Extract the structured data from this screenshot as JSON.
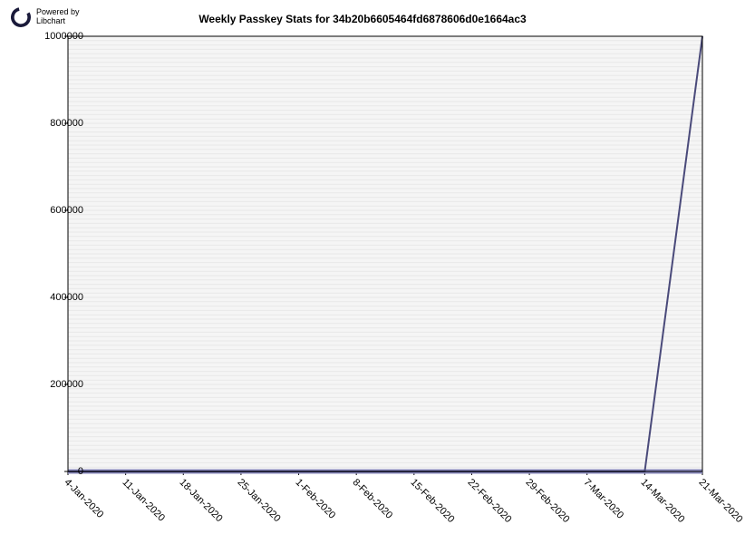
{
  "logo": {
    "powered_by": "Powered by",
    "name": "Libchart"
  },
  "title": "Weekly Passkey Stats for 34b20b6605464fd6878606d0e1664ac3",
  "chart": {
    "type": "line",
    "background_color": "#ffffff",
    "plot_background_color": "#f5f5f5",
    "border_color": "#000000",
    "grid_color": "#e8e8e8",
    "line_color": "#4a4a7a",
    "line_width": 2,
    "baseline_color": "#8888bb",
    "baseline_width": 5,
    "title_fontsize": 12,
    "title_fontweight": "bold",
    "tick_fontsize": 11,
    "x_label_rotation": 45,
    "ylim": [
      0,
      1000000
    ],
    "ytick_step": 200000,
    "y_ticks": [
      {
        "value": 0,
        "label": "0"
      },
      {
        "value": 200000,
        "label": "200000"
      },
      {
        "value": 400000,
        "label": "400000"
      },
      {
        "value": 600000,
        "label": "600000"
      },
      {
        "value": 800000,
        "label": "800000"
      },
      {
        "value": 1000000,
        "label": "1000000"
      }
    ],
    "x_categories": [
      "4-Jan-2020",
      "11-Jan-2020",
      "18-Jan-2020",
      "25-Jan-2020",
      "1-Feb-2020",
      "8-Feb-2020",
      "15-Feb-2020",
      "22-Feb-2020",
      "29-Feb-2020",
      "7-Mar-2020",
      "14-Mar-2020",
      "21-Mar-2020"
    ],
    "values": [
      0,
      0,
      0,
      0,
      0,
      0,
      0,
      0,
      0,
      0,
      0,
      1000000
    ]
  }
}
